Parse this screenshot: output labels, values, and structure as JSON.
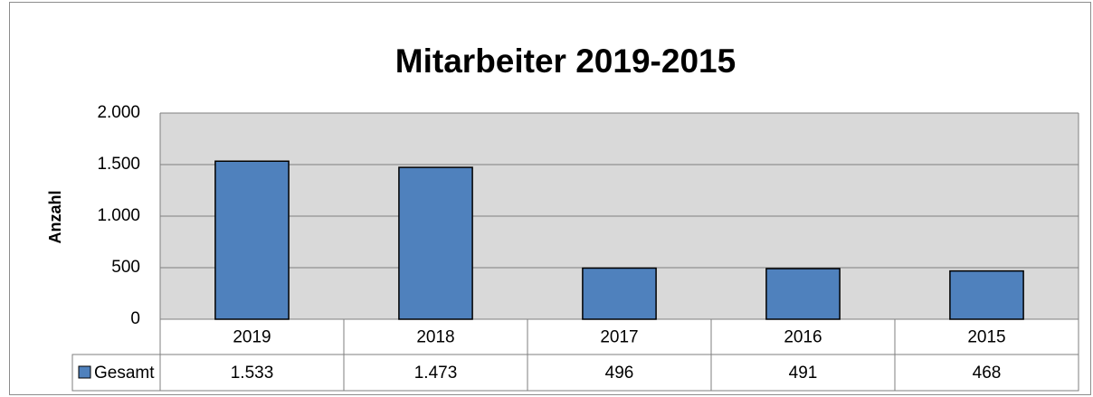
{
  "chart_data": {
    "type": "bar",
    "title": "Mitarbeiter 2019-2015",
    "y_label": "Anzahl",
    "categories": [
      "2019",
      "2018",
      "2017",
      "2016",
      "2015"
    ],
    "series": [
      {
        "name": "Gesamt",
        "color": "#4f81bd",
        "values": [
          1533,
          1473,
          496,
          491,
          468
        ],
        "value_labels": [
          "1.533",
          "1.473",
          "496",
          "491",
          "468"
        ]
      }
    ],
    "ylim": [
      0,
      2000
    ],
    "yticks": [
      0,
      500,
      {
        "value": 1000,
        "label": "1.000"
      },
      {
        "value": 1500,
        "label": "1.500"
      },
      {
        "value": 2000,
        "label": "2.000"
      }
    ],
    "grid": true
  }
}
